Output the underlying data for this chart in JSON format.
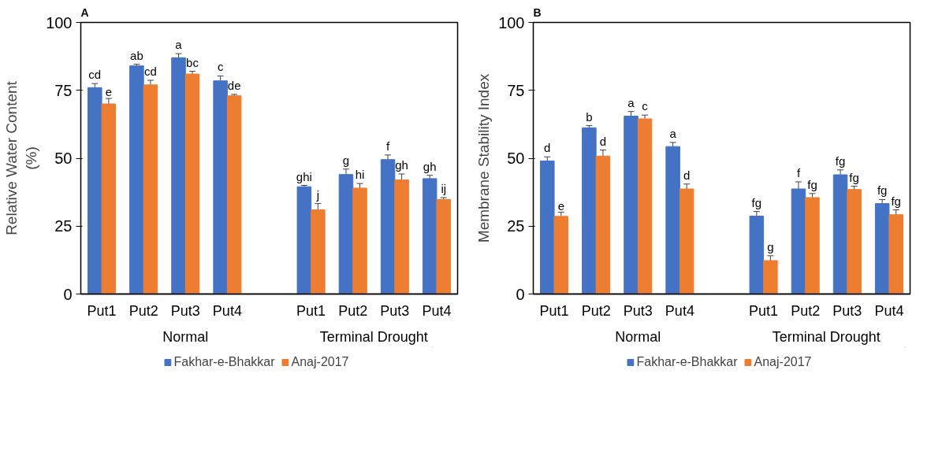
{
  "chart_data": [
    {
      "type": "bar",
      "title": "A",
      "ylabel": "Relative Water Content\n(%)",
      "categories": [
        "Put1",
        "Put2",
        "Put3",
        "Put4",
        null,
        "Put1",
        "Put2",
        "Put3",
        "Put4"
      ],
      "annotations": [
        "Normal",
        "Terminal Drought"
      ],
      "series": [
        {
          "name": "Fakhar-e-Bhakkar",
          "color": "#4472c4",
          "values": [
            76,
            84,
            87,
            78.5,
            null,
            39.5,
            44,
            49.5,
            42.5
          ],
          "errors": [
            1.5,
            0.6,
            1.5,
            1.8,
            null,
            0.5,
            2,
            1.7,
            1.2
          ],
          "value_labels": [
            "cd",
            "ab",
            "a",
            "c",
            null,
            "ghi",
            "g",
            "f",
            "gh"
          ]
        },
        {
          "name": "Anaj-2017",
          "color": "#ed7d31",
          "values": [
            70,
            77,
            81,
            73,
            null,
            31,
            39,
            42,
            34.8
          ],
          "errors": [
            2,
            1.7,
            1,
            0.5,
            null,
            2.3,
            1.7,
            2.2,
            0.7
          ],
          "value_labels": [
            "e",
            "cd",
            "bc",
            "de",
            null,
            "j",
            "hi",
            "gh",
            "ij"
          ]
        }
      ],
      "ylim": [
        0,
        100
      ],
      "yticks": [
        0,
        25,
        50,
        75,
        100
      ],
      "grid": false,
      "legend": "bottom"
    },
    {
      "type": "bar",
      "title": "B",
      "ylabel": "Membrane Stability Index",
      "categories": [
        "Put1",
        "Put2",
        "Put3",
        "Put4",
        null,
        "Put1",
        "Put2",
        "Put3",
        "Put4"
      ],
      "annotations": [
        "Normal",
        "Terminal Drought"
      ],
      "series": [
        {
          "name": "Fakhar-e-Bhakkar",
          "color": "#4472c4",
          "values": [
            49,
            61.2,
            65.5,
            54.3,
            null,
            28.7,
            38.7,
            43.9,
            33.3
          ],
          "errors": [
            1.5,
            0.8,
            1.7,
            1.5,
            null,
            1.7,
            2.6,
            1.8,
            1.5
          ],
          "value_labels": [
            "d",
            "b",
            "a",
            "a",
            null,
            "fg",
            "f",
            "fg",
            "fg"
          ]
        },
        {
          "name": "Anaj-2017",
          "color": "#ed7d31",
          "values": [
            28.6,
            50.8,
            64.5,
            38.7,
            null,
            12.3,
            35.5,
            38.5,
            29.2
          ],
          "errors": [
            1.5,
            2.2,
            1.4,
            1.8,
            null,
            1.8,
            1.5,
            1.2,
            1.8
          ],
          "value_labels": [
            "e",
            "d",
            "c",
            "d",
            null,
            "g",
            "fg",
            "fg",
            "fg"
          ]
        }
      ],
      "ylim": [
        0,
        100
      ],
      "yticks": [
        0,
        25,
        50,
        75,
        100
      ],
      "grid": false,
      "legend": "bottom"
    }
  ]
}
